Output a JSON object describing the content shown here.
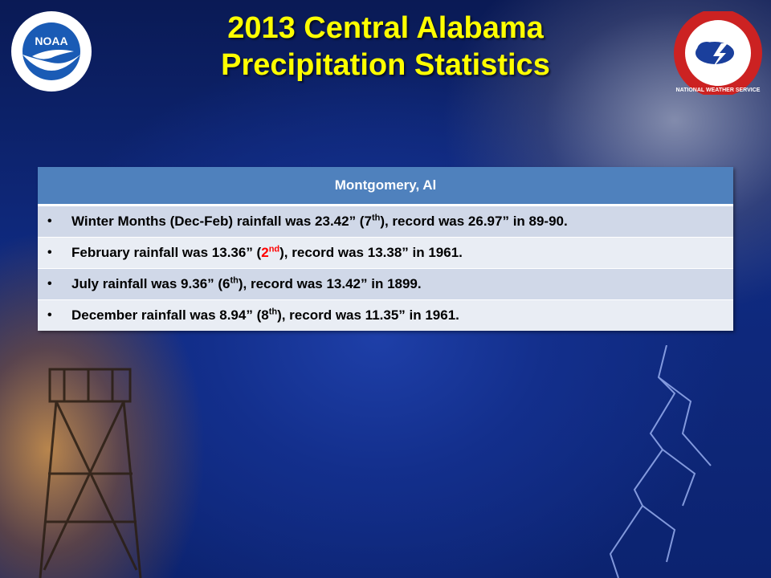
{
  "title": {
    "line1": "2013 Central Alabama",
    "line2": "Precipitation Statistics"
  },
  "logos": {
    "left": "noaa-logo",
    "right": "nws-logo",
    "left_text": "NOAA",
    "right_text": "NATIONAL WEATHER SERVICE"
  },
  "table": {
    "header": "Montgomery, Al",
    "rows": [
      {
        "bullet": "•",
        "pre": "Winter Months (Dec-Feb) rainfall was 23.42” (7",
        "sup": "th",
        "post": "), record was 26.97” in 89-90."
      },
      {
        "bullet": "•",
        "pre": "February rainfall was 13.36” (",
        "rank": "2",
        "sup": "nd",
        "post": "), record was 13.38” in 1961."
      },
      {
        "bullet": "•",
        "pre": "July rainfall was 9.36” (6",
        "sup": "th",
        "post": "), record was 13.42” in 1899."
      },
      {
        "bullet": "•",
        "pre": "December rainfall was 8.94” (8",
        "sup": "th",
        "post": "), record was 11.35” in 1961."
      }
    ]
  },
  "colors": {
    "title": "#ffff00",
    "header_bg": "#4f81bd",
    "row_odd": "#d0d8e8",
    "row_even": "#e9edf4",
    "highlight": "#ff0000"
  }
}
